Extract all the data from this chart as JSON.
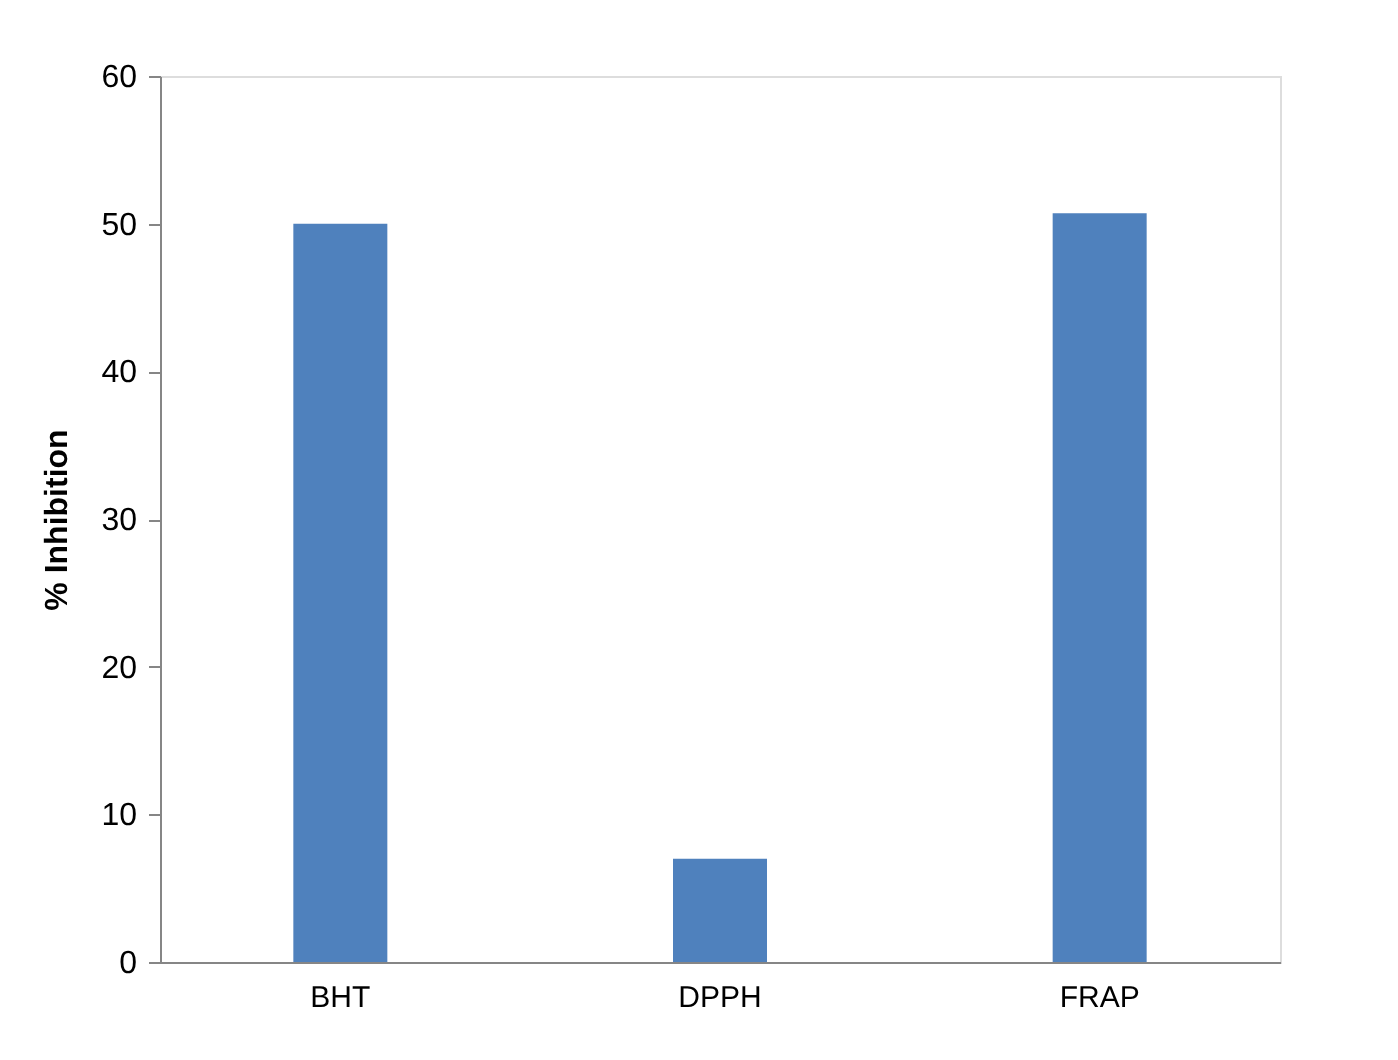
{
  "chart_data": {
    "type": "bar",
    "ylabel": "% Inhibition",
    "categories": [
      "BHT",
      "DPPH",
      "FRAP"
    ],
    "values": [
      50,
      7,
      50.7
    ],
    "color": "#4f81bd",
    "ylim": [
      0,
      60
    ],
    "yticks": [
      0,
      10,
      20,
      30,
      40,
      50,
      60
    ],
    "grid": false
  }
}
